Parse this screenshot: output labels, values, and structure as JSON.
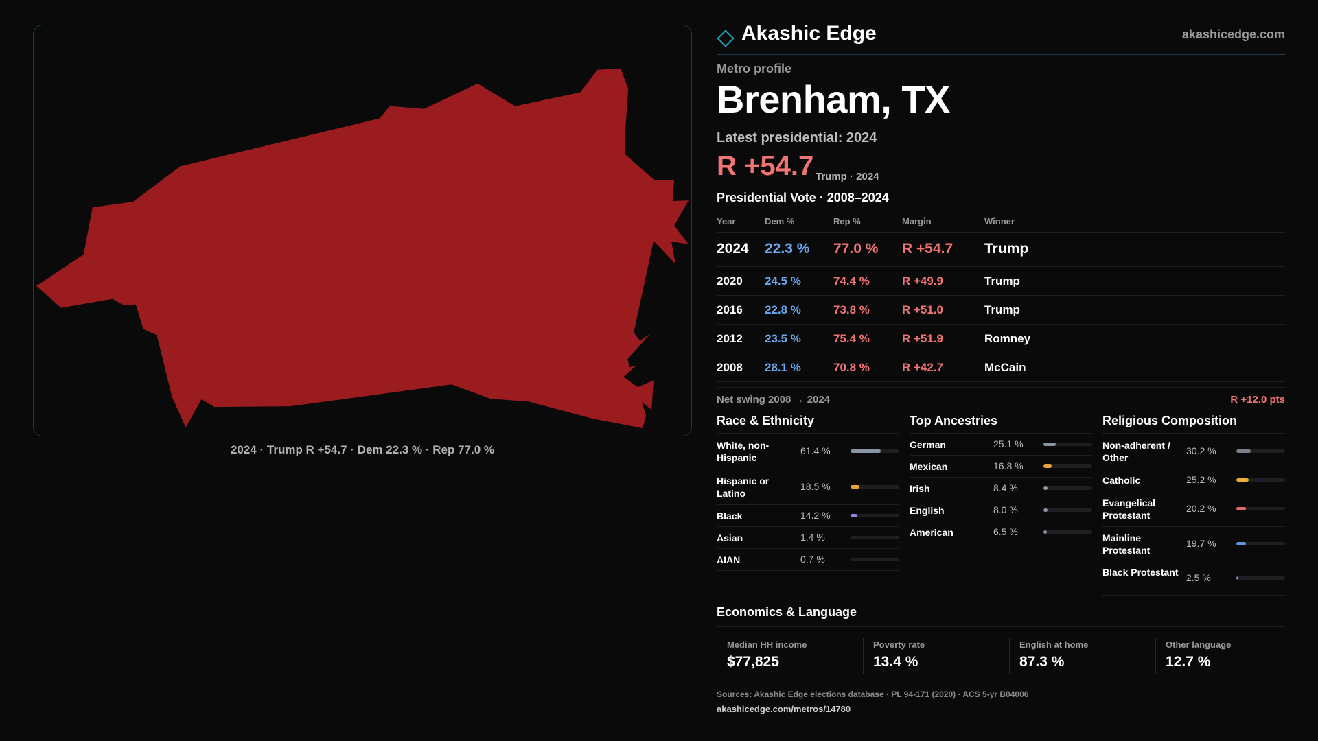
{
  "map": {
    "fill_color": "#9b1c1f",
    "border_color": "#12404a",
    "caption": "2024 · Trump R +54.7 · Dem 22.3 % · Rep 77.0 %"
  },
  "brand": {
    "name": "Akashic Edge",
    "url": "akashicedge.com",
    "logo_icon": "diamond-icon",
    "accent_color": "#1fa3b3"
  },
  "profile": {
    "kicker": "Metro profile",
    "title": "Brenham, TX",
    "latest_label": "Latest presidential: 2024",
    "margin": "R +54.7",
    "margin_sub": "Trump · 2024"
  },
  "vote": {
    "title": "Presidential Vote · 2008–2024",
    "headers": {
      "year": "Year",
      "dem": "Dem %",
      "rep": "Rep %",
      "margin": "Margin",
      "winner": "Winner"
    },
    "rows": [
      {
        "year": "2024",
        "dem": "22.3 %",
        "rep": "77.0 %",
        "margin": "R +54.7",
        "winner": "Trump"
      },
      {
        "year": "2020",
        "dem": "24.5 %",
        "rep": "74.4 %",
        "margin": "R +49.9",
        "winner": "Trump"
      },
      {
        "year": "2016",
        "dem": "22.8 %",
        "rep": "73.8 %",
        "margin": "R +51.0",
        "winner": "Trump"
      },
      {
        "year": "2012",
        "dem": "23.5 %",
        "rep": "75.4 %",
        "margin": "R +51.9",
        "winner": "Romney"
      },
      {
        "year": "2008",
        "dem": "28.1 %",
        "rep": "70.8 %",
        "margin": "R +42.7",
        "winner": "McCain"
      }
    ],
    "swing_label": "Net swing 2008 → 2024",
    "swing_value": "R +12.0 pts"
  },
  "race": {
    "title": "Race & Ethnicity",
    "rows": [
      {
        "label": "White, non-Hispanic",
        "value": "61.4 %",
        "pct": 61.4,
        "color": "#8a94a6"
      },
      {
        "label": "Hispanic or Latino",
        "value": "18.5 %",
        "pct": 18.5,
        "color": "#e8a33a"
      },
      {
        "label": "Black",
        "value": "14.2 %",
        "pct": 14.2,
        "color": "#9b7fe6"
      },
      {
        "label": "Asian",
        "value": "1.4 %",
        "pct": 1.4,
        "color": "#5fc4c0"
      },
      {
        "label": "AIAN",
        "value": "0.7 %",
        "pct": 0.7,
        "color": "#d4744a"
      }
    ]
  },
  "ancestry": {
    "title": "Top Ancestries",
    "rows": [
      {
        "label": "German",
        "value": "25.1 %",
        "pct": 25.1,
        "color": "#8a94a6"
      },
      {
        "label": "Mexican",
        "value": "16.8 %",
        "pct": 16.8,
        "color": "#e8a33a"
      },
      {
        "label": "Irish",
        "value": "8.4 %",
        "pct": 8.4,
        "color": "#8a94a6"
      },
      {
        "label": "English",
        "value": "8.0 %",
        "pct": 8.0,
        "color": "#8a94a6"
      },
      {
        "label": "American",
        "value": "6.5 %",
        "pct": 6.5,
        "color": "#8a94a6"
      }
    ]
  },
  "religion": {
    "title": "Religious Composition",
    "rows": [
      {
        "label": "Non-adherent / Other",
        "value": "30.2 %",
        "pct": 30.2,
        "color": "#7a7f8a"
      },
      {
        "label": "Catholic",
        "value": "25.2 %",
        "pct": 25.2,
        "color": "#e8b03a"
      },
      {
        "label": "Evangelical Protestant",
        "value": "20.2 %",
        "pct": 20.2,
        "color": "#e06a6a"
      },
      {
        "label": "Mainline Protestant",
        "value": "19.7 %",
        "pct": 19.7,
        "color": "#5b95e0"
      },
      {
        "label": "Black Protestant",
        "value": "2.5 %",
        "pct": 2.5,
        "color": "#9b7fe6"
      }
    ]
  },
  "economics": {
    "title": "Economics & Language",
    "items": [
      {
        "label": "Median HH income",
        "value": "$77,825"
      },
      {
        "label": "Poverty rate",
        "value": "13.4 %"
      },
      {
        "label": "English at home",
        "value": "87.3 %"
      },
      {
        "label": "Other language",
        "value": "12.7 %"
      }
    ]
  },
  "footer": {
    "sources": "Sources: Akashic Edge elections database · PL 94-171 (2020) · ACS 5-yr B04006",
    "link": "akashicedge.com/metros/14780"
  }
}
